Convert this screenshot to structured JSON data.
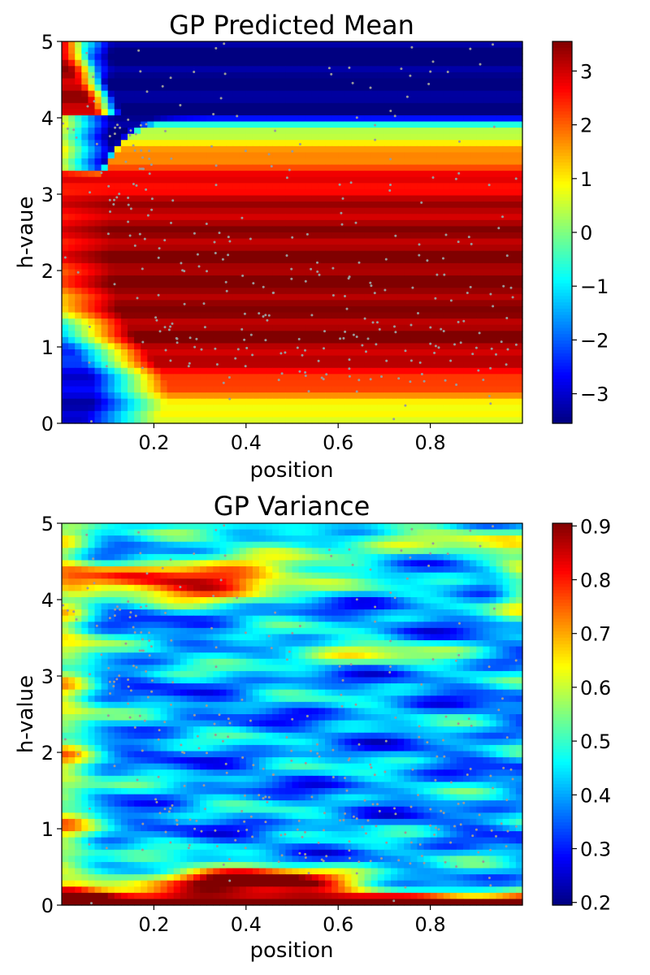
{
  "chart_data": [
    {
      "type": "heatmap",
      "title": "GP Predicted Mean",
      "xlabel": "position",
      "ylabel": "h-vaue",
      "xlim": [
        0.0,
        1.0
      ],
      "ylim": [
        0,
        5
      ],
      "xticks": [
        0.2,
        0.4,
        0.6,
        0.8
      ],
      "yticks": [
        0,
        1,
        2,
        3,
        4,
        5
      ],
      "colormap": "jet",
      "colorbar": {
        "range": [
          -3.55,
          3.55
        ],
        "ticks": [
          -3,
          -2,
          -1,
          0,
          1,
          2,
          3
        ],
        "tick_labels": [
          "−3",
          "−2",
          "−1",
          "0",
          "1",
          "2",
          "3"
        ]
      },
      "observations_color": "#9a9a9a"
    },
    {
      "type": "heatmap",
      "title": "GP Variance",
      "xlabel": "position",
      "ylabel": "h-value",
      "xlim": [
        0.0,
        1.0
      ],
      "ylim": [
        0,
        5
      ],
      "xticks": [
        0.2,
        0.4,
        0.6,
        0.8
      ],
      "yticks": [
        0,
        1,
        2,
        3,
        4,
        5
      ],
      "colormap": "jet",
      "colorbar": {
        "range": [
          0.195,
          0.905
        ],
        "ticks": [
          0.2,
          0.3,
          0.4,
          0.5,
          0.6,
          0.7,
          0.8,
          0.9
        ],
        "tick_labels": [
          "0.2",
          "0.3",
          "0.4",
          "0.5",
          "0.6",
          "0.7",
          "0.8",
          "0.9"
        ]
      },
      "observations_color": "#9a9a9a"
    }
  ]
}
